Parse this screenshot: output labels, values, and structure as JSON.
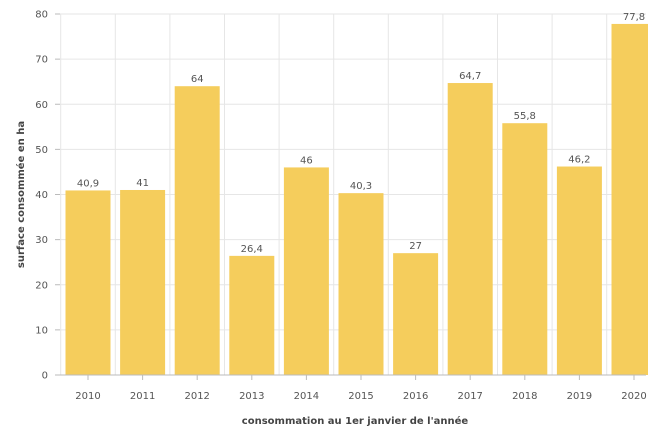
{
  "chart_data": {
    "type": "bar",
    "title": "",
    "xlabel": "consommation au 1er janvier de l'année",
    "ylabel": "surface consommée en ha",
    "categories": [
      "2010",
      "2011",
      "2012",
      "2013",
      "2014",
      "2015",
      "2016",
      "2017",
      "2018",
      "2019",
      "2020"
    ],
    "values": [
      40.9,
      41,
      64,
      26.4,
      46,
      40.3,
      27,
      64.7,
      55.8,
      46.2,
      77.8
    ],
    "value_labels": [
      "40,9",
      "41",
      "64",
      "26,4",
      "46",
      "40,3",
      "27",
      "64,7",
      "55,8",
      "46,2",
      "77,8"
    ],
    "ylim": [
      0,
      80
    ],
    "yticks": [
      "0",
      "10",
      "20",
      "30",
      "40",
      "50",
      "60",
      "70",
      "80"
    ],
    "grid": true,
    "legend": "none",
    "colors": {
      "bar": "#f5cd5c",
      "grid": "#e6e6e6",
      "axis": "#bbbbbb"
    }
  }
}
